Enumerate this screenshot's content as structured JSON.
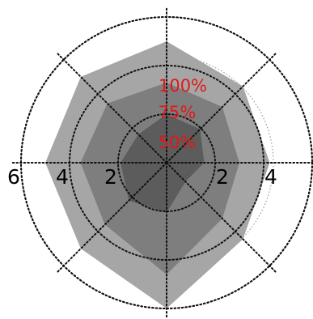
{
  "chart_data": {
    "type": "radar",
    "axis_count": 8,
    "radial_max": 6,
    "ring_levels": [
      2,
      4,
      6
    ],
    "dotted_gray_rings": [
      2.5,
      4.4
    ],
    "tick_labels": [
      "2",
      "4",
      "6"
    ],
    "level_labels": [
      "100%",
      "75%",
      "50%"
    ],
    "series": [
      {
        "values": [
          5.0,
          4.45,
          4.25,
          4.45,
          6.0,
          5.0,
          5.0,
          5.0
        ],
        "color": "#a6a6a6"
      },
      {
        "values": [
          3.3,
          3.25,
          3.0,
          3.25,
          4.6,
          3.6,
          3.55,
          3.45
        ],
        "color": "#7e7e7e"
      },
      {
        "values": [
          2.0,
          1.95,
          1.55,
          1.1,
          2.05,
          2.2,
          1.9,
          1.65
        ],
        "color": "#5c5c5c"
      }
    ],
    "grid": true
  }
}
